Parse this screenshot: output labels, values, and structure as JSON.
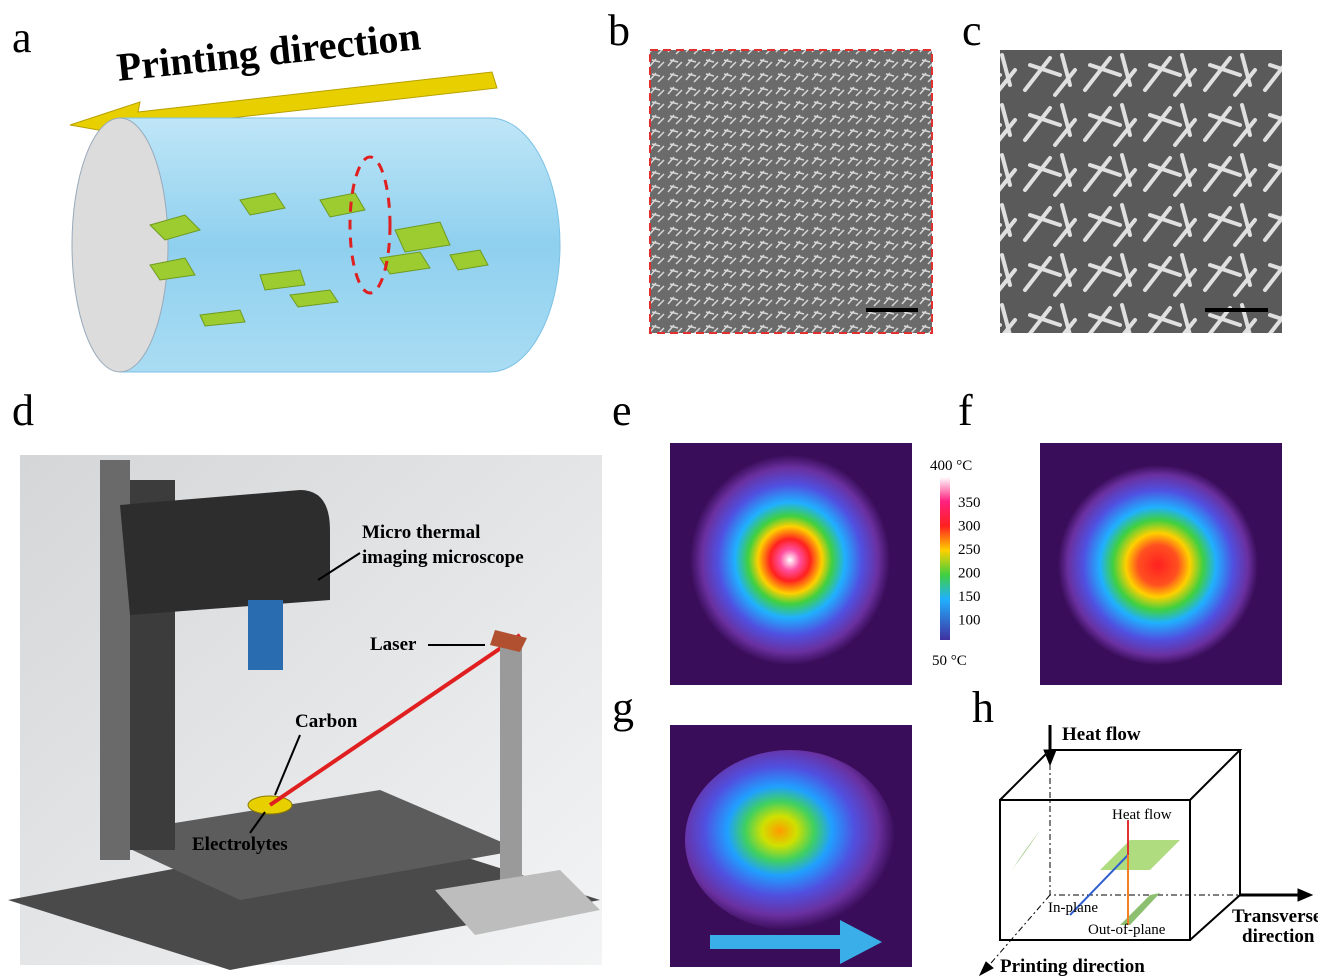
{
  "panel_a": {
    "letter": "a",
    "arrow_label": "Printing direction"
  },
  "panel_b": {
    "letter": "b"
  },
  "panel_c": {
    "letter": "c"
  },
  "panel_d": {
    "letter": "d",
    "microscope_lines": [
      "Micro thermal",
      "imaging microscope"
    ],
    "laser": "Laser",
    "carbon": "Carbon",
    "electrolytes": "Electrolytes"
  },
  "panel_e": {
    "letter": "e",
    "colorbar": {
      "top": "400 °C",
      "ticks": [
        "350",
        "300",
        "250",
        "200",
        "150",
        "100"
      ],
      "bottom": "50 °C"
    }
  },
  "panel_f": {
    "letter": "f"
  },
  "panel_g": {
    "letter": "g"
  },
  "panel_h": {
    "letter": "h",
    "heat_flow_top": "Heat flow",
    "heat_flow_inner": "Heat flow",
    "in_plane": "In-plane",
    "out_of_plane": "Out-of-plane",
    "transverse_lines": [
      "Transverse",
      "direction"
    ],
    "printing": "Printing direction"
  }
}
